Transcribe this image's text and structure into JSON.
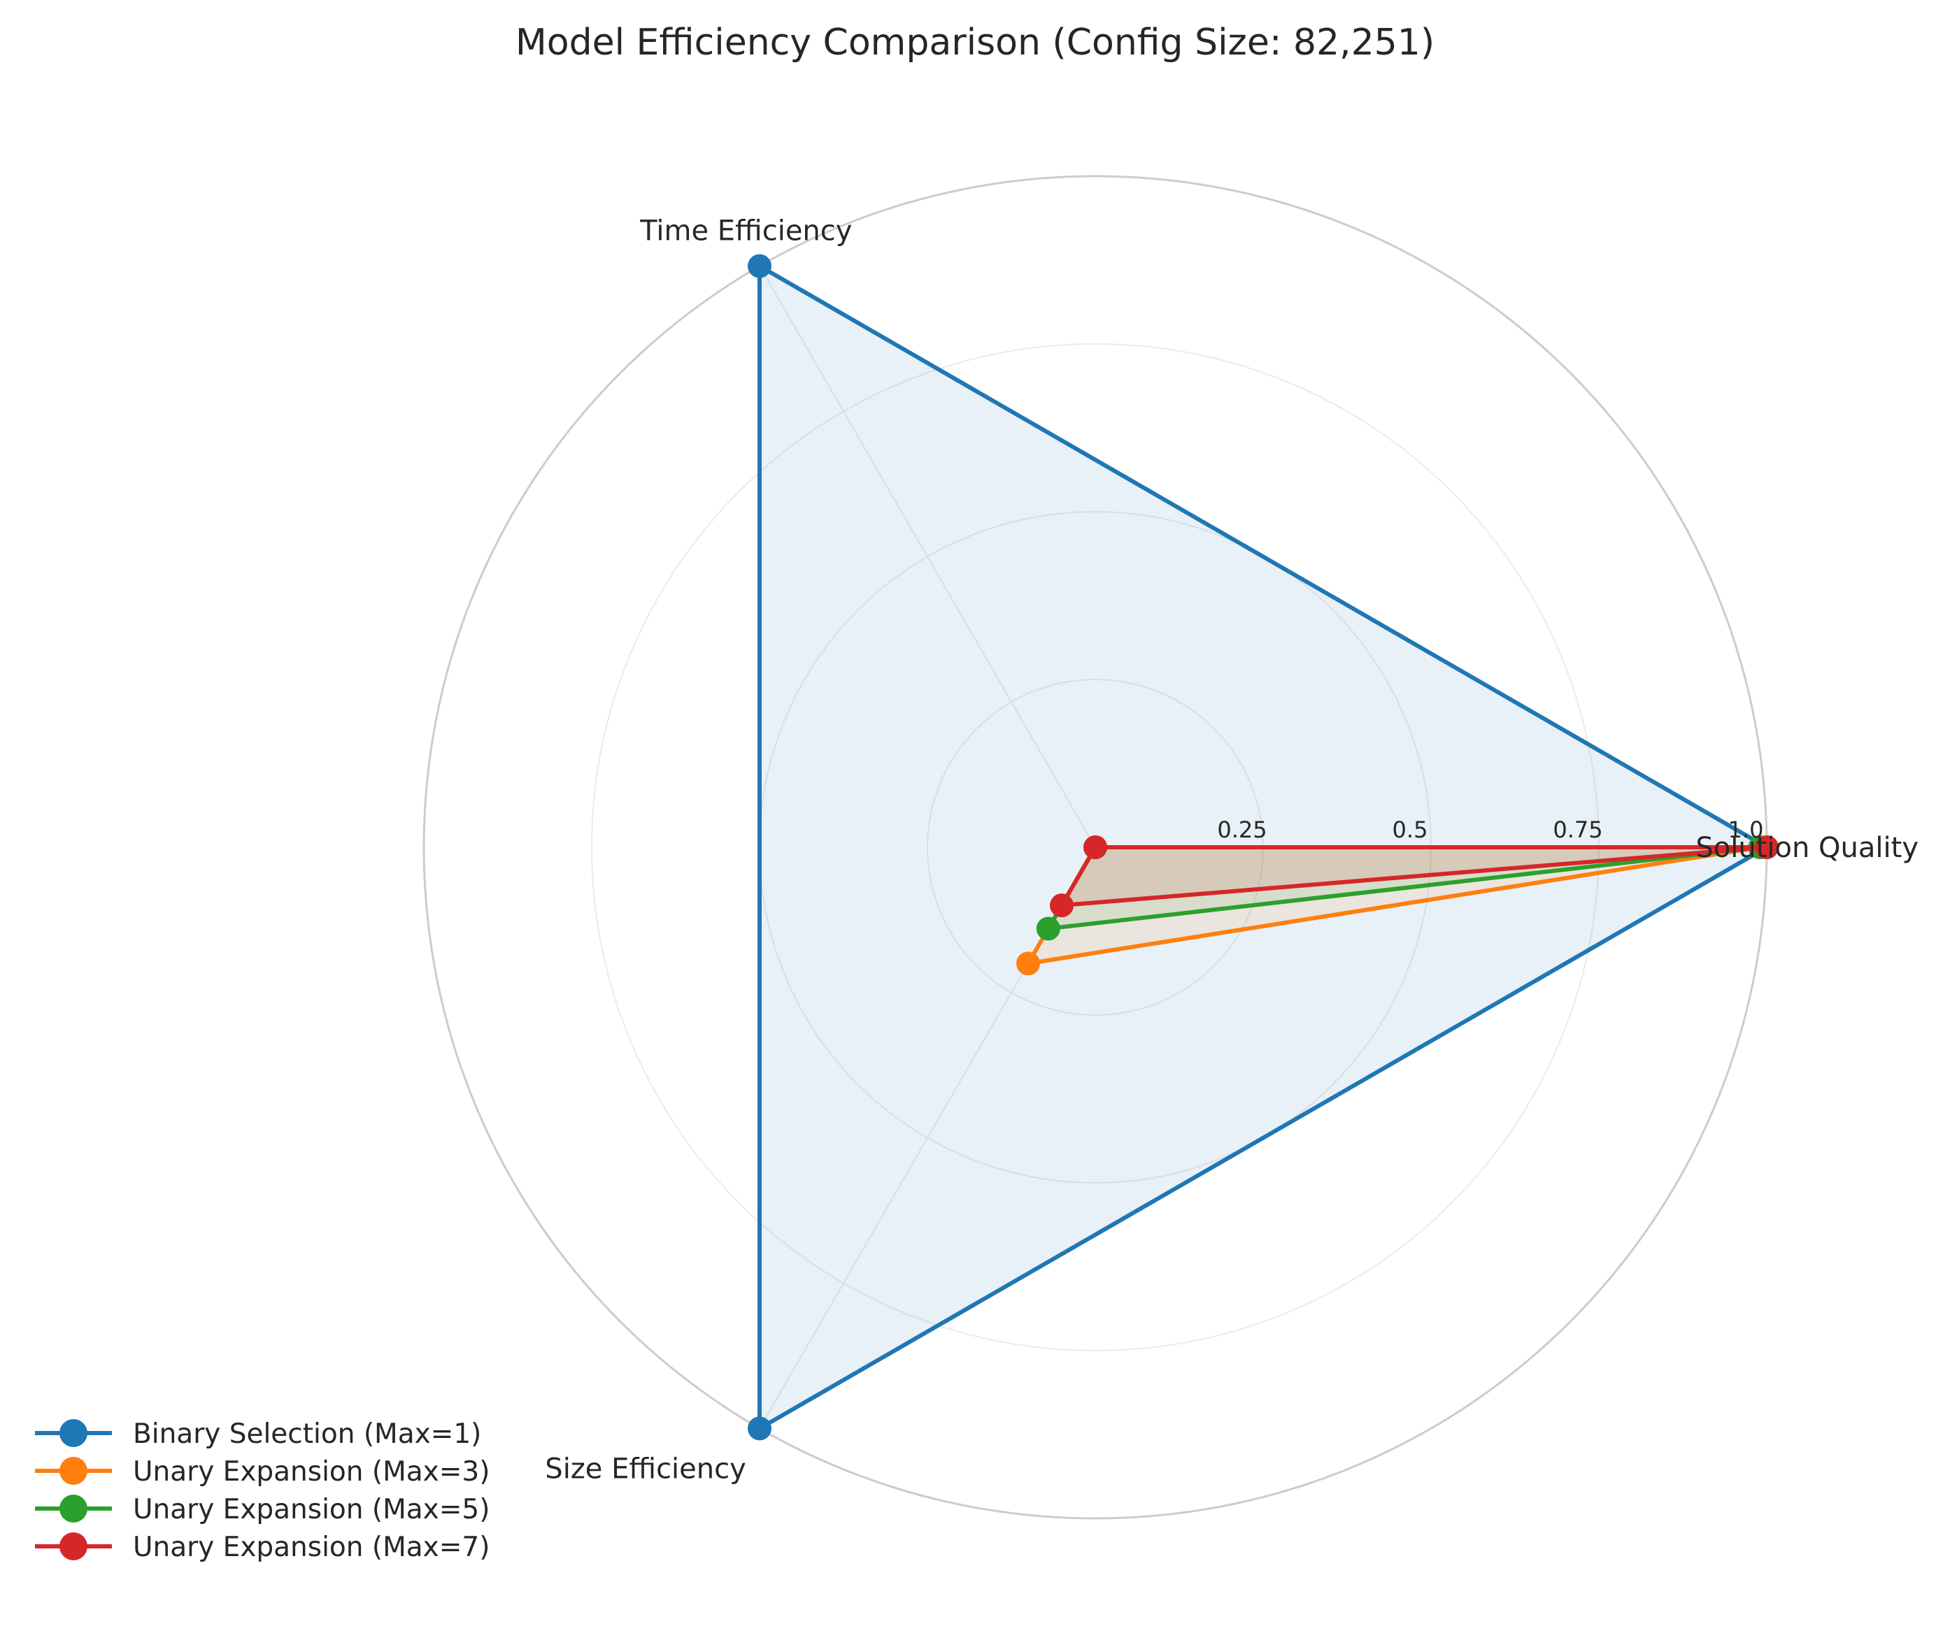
{
  "chart_data": {
    "type": "radar",
    "title": "Model Efficiency Comparison (Config Size: 82,251)",
    "axes": [
      "Solution Quality",
      "Time Efficiency",
      "Size Efficiency"
    ],
    "rlim": [
      0,
      1.0
    ],
    "rticks": [
      0.25,
      0.5,
      0.75,
      1.0
    ],
    "rtick_labels": [
      "0.25",
      "0.5",
      "0.75",
      "1.0"
    ],
    "grid": true,
    "legend_position": "bottom-left",
    "series": [
      {
        "name": "Binary Selection (Max=1)",
        "color": "#1f77b4",
        "values": [
          1.0,
          1.0,
          1.0
        ],
        "fill_opacity": 0.1
      },
      {
        "name": "Unary Expansion (Max=3)",
        "color": "#ff7f0e",
        "values": [
          0.99,
          0.0,
          0.2
        ],
        "fill_opacity": 0.1
      },
      {
        "name": "Unary Expansion (Max=5)",
        "color": "#2ca02c",
        "values": [
          0.99,
          0.0,
          0.14
        ],
        "fill_opacity": 0.1
      },
      {
        "name": "Unary Expansion (Max=7)",
        "color": "#d62728",
        "values": [
          1.0,
          0.0,
          0.1
        ],
        "fill_opacity": 0.1
      }
    ]
  }
}
